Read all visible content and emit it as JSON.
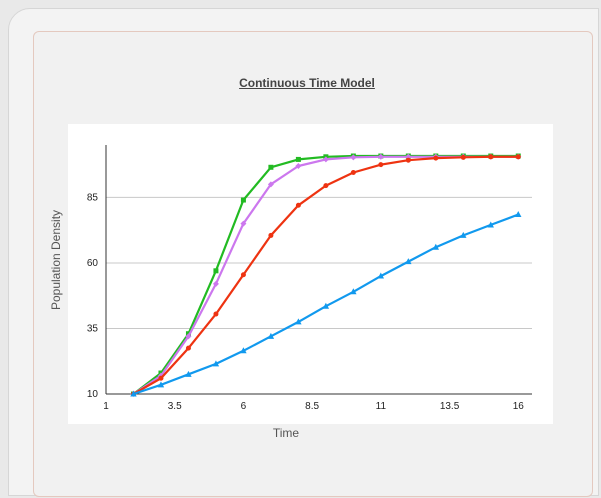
{
  "chart_data": {
    "type": "line",
    "title": "Continuous Time Model",
    "xlabel": "Time",
    "ylabel": "Population Density",
    "xlim": [
      1,
      16.5
    ],
    "ylim": [
      10,
      105
    ],
    "xticks": [
      "1",
      "3.5",
      "6",
      "8.5",
      "11",
      "13.5",
      "16"
    ],
    "yticks": [
      "10",
      "35",
      "60",
      "85"
    ],
    "x": [
      2,
      3,
      4,
      5,
      6,
      7,
      8,
      9,
      10,
      11,
      12,
      13,
      14,
      15,
      16
    ],
    "series": [
      {
        "color": "#22bb22",
        "marker": "square",
        "values": [
          10,
          18,
          33,
          57,
          84,
          96.5,
          99.5,
          100.5,
          100.8,
          100.8,
          100.8,
          100.8,
          100.8,
          100.8,
          100.8
        ]
      },
      {
        "color": "#cc77ee",
        "marker": "diamond",
        "values": [
          10,
          17,
          32,
          52,
          75,
          90,
          97,
          99.5,
          100.3,
          100.5,
          100.5,
          100.5,
          100.5,
          100.5,
          100.5
        ]
      },
      {
        "color": "#ee3311",
        "marker": "circle",
        "values": [
          10,
          16,
          27.5,
          40.5,
          55.5,
          70.5,
          82,
          89.5,
          94.5,
          97.5,
          99.2,
          100,
          100.3,
          100.5,
          100.5
        ]
      },
      {
        "color": "#1199ee",
        "marker": "triangle",
        "values": [
          10,
          13.5,
          17.5,
          21.5,
          26.5,
          32,
          37.5,
          43.5,
          49,
          55,
          60.5,
          66,
          70.5,
          74.5,
          78.5
        ]
      }
    ]
  }
}
